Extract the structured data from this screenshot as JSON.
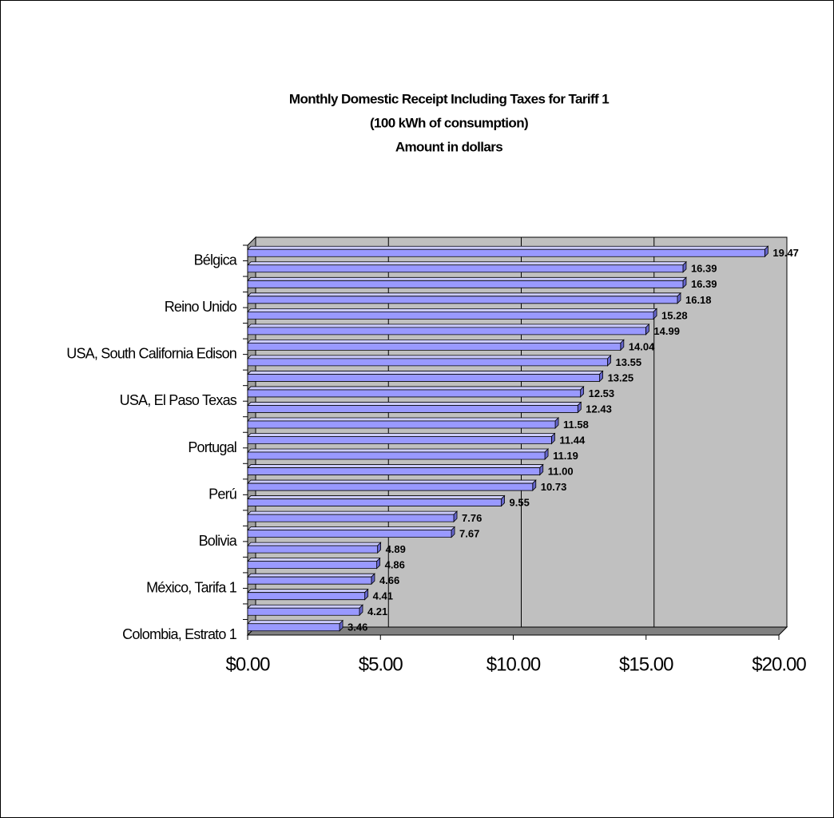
{
  "chart_data": {
    "type": "bar3d",
    "title_lines": [
      "Monthly Domestic Receipt Including Taxes for Tariff 1",
      "(100 kWh of consumption)",
      "Amount in dollars"
    ],
    "categories": [
      "Bélgica",
      null,
      null,
      "Reino Unido",
      null,
      null,
      "USA, South California Edison",
      null,
      null,
      "USA, El Paso Texas",
      null,
      null,
      "Portugal",
      null,
      null,
      "Perú",
      null,
      null,
      "Bolivia",
      null,
      null,
      "México, Tarifa 1",
      null,
      null,
      "Colombia, Estrato 1"
    ],
    "values": [
      19.47,
      16.39,
      16.39,
      16.18,
      15.28,
      14.99,
      14.04,
      13.55,
      13.25,
      12.53,
      12.43,
      11.58,
      11.44,
      11.19,
      11.0,
      10.73,
      9.55,
      7.76,
      7.67,
      4.89,
      4.86,
      4.66,
      4.41,
      4.21,
      3.46
    ],
    "value_labels": [
      "19.47",
      "16.39",
      "16.39",
      "16.18",
      "15.28",
      "14.99",
      "14.04",
      "13.55",
      "13.25",
      "12.53",
      "12.43",
      "11.58",
      "11.44",
      "11.19",
      "11.00",
      "10.73",
      "9.55",
      "7.76",
      "7.67",
      "4.89",
      "4.86",
      "4.66",
      "4.41",
      "4.21",
      "3.46"
    ],
    "color": "#9999ff",
    "xlim": [
      0,
      20
    ],
    "xticks": [
      {
        "value": 0,
        "label": "$0.00"
      },
      {
        "value": 5,
        "label": "$5.00"
      },
      {
        "value": 10,
        "label": "$10.00"
      },
      {
        "value": 15,
        "label": "$15.00"
      },
      {
        "value": 20,
        "label": "$20.00"
      }
    ],
    "grid": true
  }
}
